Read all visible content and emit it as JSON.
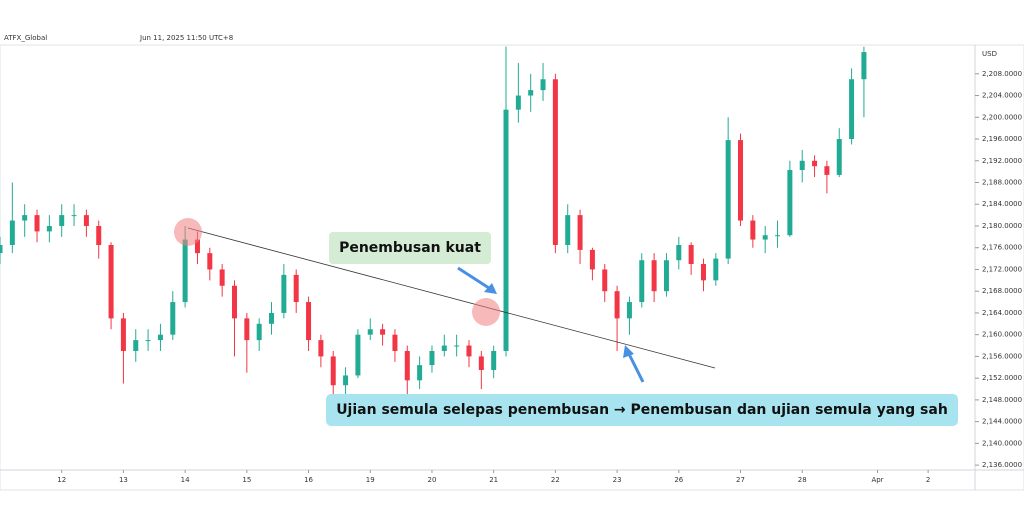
{
  "chart_data": {
    "type": "candlestick",
    "source": "ATFX_Global",
    "timestamp": "Jun 11, 2025 11:50 UTC+8",
    "currency": "USD",
    "up_color": "#22ab94",
    "down_color": "#f23645",
    "xlim": [
      0,
      79
    ],
    "xticks": [
      {
        "value": 5,
        "label": "12"
      },
      {
        "value": 10,
        "label": "13"
      },
      {
        "value": 15,
        "label": "14"
      },
      {
        "value": 20,
        "label": "15"
      },
      {
        "value": 25,
        "label": "16"
      },
      {
        "value": 30,
        "label": "19"
      },
      {
        "value": 35,
        "label": "20"
      },
      {
        "value": 40,
        "label": "21"
      },
      {
        "value": 45,
        "label": "22"
      },
      {
        "value": 50,
        "label": "23"
      },
      {
        "value": 55,
        "label": "26"
      },
      {
        "value": 60,
        "label": "27"
      },
      {
        "value": 65,
        "label": "28"
      },
      {
        "value": 71.1,
        "label": "Apr"
      },
      {
        "value": 75.2,
        "label": "2"
      }
    ],
    "ylim": [
      2135.1,
      2213.3
    ],
    "yticks": [
      {
        "value": 2136,
        "label": "2,136.0000"
      },
      {
        "value": 2140,
        "label": "2,140.0000"
      },
      {
        "value": 2144,
        "label": "2,144.0000"
      },
      {
        "value": 2148,
        "label": "2,148.0000"
      },
      {
        "value": 2152,
        "label": "2,152.0000"
      },
      {
        "value": 2156,
        "label": "2,156.0000"
      },
      {
        "value": 2160,
        "label": "2,160.0000"
      },
      {
        "value": 2164,
        "label": "2,164.0000"
      },
      {
        "value": 2168,
        "label": "2,168.0000"
      },
      {
        "value": 2172,
        "label": "2,172.0000"
      },
      {
        "value": 2176,
        "label": "2,176.0000"
      },
      {
        "value": 2180,
        "label": "2,180.0000"
      },
      {
        "value": 2184,
        "label": "2,184.0000"
      },
      {
        "value": 2188,
        "label": "2,188.0000"
      },
      {
        "value": 2192,
        "label": "2,192.0000"
      },
      {
        "value": 2196,
        "label": "2,196.0000"
      },
      {
        "value": 2200,
        "label": "2,200.0000"
      },
      {
        "value": 2204,
        "label": "2,204.0000"
      },
      {
        "value": 2208,
        "label": "2,208.0000"
      }
    ],
    "annotations": [
      "Penembusan kuat",
      "Ujian semula selepas penembusan → Penembusan dan ujian semula yang sah"
    ],
    "ohlc": [
      [
        2175,
        2178,
        2173,
        2176.5
      ],
      [
        2176.5,
        2188,
        2175,
        2181
      ],
      [
        2181,
        2184,
        2178,
        2182
      ],
      [
        2182,
        2183,
        2177,
        2179
      ],
      [
        2179,
        2182,
        2177,
        2180
      ],
      [
        2180,
        2184,
        2178,
        2182
      ],
      [
        2182,
        2184,
        2180,
        2182
      ],
      [
        2182,
        2183,
        2178,
        2180
      ],
      [
        2180,
        2181,
        2174,
        2176.5
      ],
      [
        2176.5,
        2177,
        2161,
        2163
      ],
      [
        2163,
        2164,
        2151,
        2157
      ],
      [
        2157,
        2161,
        2155,
        2159
      ],
      [
        2159,
        2161,
        2157,
        2159
      ],
      [
        2159,
        2162,
        2157,
        2160
      ],
      [
        2160,
        2168,
        2159,
        2166
      ],
      [
        2166,
        2180,
        2165,
        2177.5
      ],
      [
        2177.5,
        2179,
        2173,
        2175
      ],
      [
        2175,
        2176,
        2170,
        2172
      ],
      [
        2172,
        2173,
        2167,
        2169
      ],
      [
        2169,
        2170,
        2156,
        2163
      ],
      [
        2163,
        2164,
        2153,
        2159
      ],
      [
        2159,
        2163,
        2157,
        2162
      ],
      [
        2162,
        2166,
        2160,
        2164
      ],
      [
        2164,
        2173,
        2163,
        2171
      ],
      [
        2171,
        2172,
        2164,
        2166
      ],
      [
        2166,
        2167,
        2157,
        2159
      ],
      [
        2159,
        2160,
        2154,
        2156
      ],
      [
        2156,
        2157,
        2148,
        2150.7
      ],
      [
        2150.7,
        2154,
        2149,
        2152.5
      ],
      [
        2152.5,
        2161,
        2152,
        2160
      ],
      [
        2160,
        2163,
        2159,
        2161
      ],
      [
        2161,
        2162,
        2158,
        2160
      ],
      [
        2160,
        2161,
        2155,
        2157
      ],
      [
        2157,
        2158,
        2149,
        2151.6
      ],
      [
        2151.6,
        2156,
        2150,
        2154.4
      ],
      [
        2154.4,
        2158,
        2153,
        2157
      ],
      [
        2157,
        2160,
        2156,
        2158
      ],
      [
        2158,
        2160,
        2156,
        2158
      ],
      [
        2158,
        2159,
        2154,
        2156
      ],
      [
        2156,
        2157,
        2150,
        2153.5
      ],
      [
        2153.5,
        2158,
        2152,
        2157
      ],
      [
        2157,
        2213,
        2156,
        2201.4
      ],
      [
        2201.4,
        2210,
        2199,
        2204
      ],
      [
        2204,
        2208,
        2201,
        2205
      ],
      [
        2205,
        2210,
        2203,
        2207
      ],
      [
        2207,
        2208,
        2175,
        2176.5
      ],
      [
        2176.5,
        2184,
        2175,
        2182
      ],
      [
        2182,
        2183,
        2173,
        2175.6
      ],
      [
        2175.6,
        2176,
        2170,
        2172
      ],
      [
        2172,
        2173,
        2166,
        2168
      ],
      [
        2168,
        2169,
        2157,
        2163
      ],
      [
        2163,
        2167,
        2160,
        2166
      ],
      [
        2166,
        2175,
        2165,
        2173.7
      ],
      [
        2173.7,
        2175,
        2166,
        2168
      ],
      [
        2168,
        2175,
        2167,
        2173.7
      ],
      [
        2173.7,
        2178,
        2172,
        2176.5
      ],
      [
        2176.5,
        2177,
        2171,
        2173
      ],
      [
        2173,
        2174,
        2168,
        2170
      ],
      [
        2170,
        2175,
        2169,
        2174
      ],
      [
        2174,
        2200,
        2173,
        2195.8
      ],
      [
        2195.8,
        2197,
        2180,
        2181
      ],
      [
        2181,
        2182,
        2176,
        2177.5
      ],
      [
        2177.5,
        2180,
        2175,
        2178.3
      ],
      [
        2178.3,
        2181,
        2176,
        2178.3
      ],
      [
        2178.3,
        2192,
        2178,
        2190.3
      ],
      [
        2190.3,
        2194,
        2188,
        2192
      ],
      [
        2192,
        2193,
        2189,
        2191
      ],
      [
        2191,
        2192,
        2186,
        2189.4
      ],
      [
        2189.4,
        2198,
        2189,
        2196
      ],
      [
        2196,
        2209,
        2195,
        2207
      ],
      [
        2207,
        2213,
        2200,
        2212
      ]
    ]
  }
}
